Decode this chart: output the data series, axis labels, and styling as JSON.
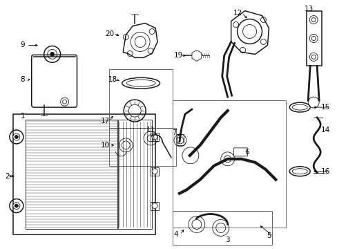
{
  "bg_color": "#ffffff",
  "lc": "#1a1a1a",
  "fig_width": 4.89,
  "fig_height": 3.6,
  "dpi": 100,
  "label_fs": 7.5,
  "thin": 0.6,
  "med": 1.1,
  "thick": 2.0
}
